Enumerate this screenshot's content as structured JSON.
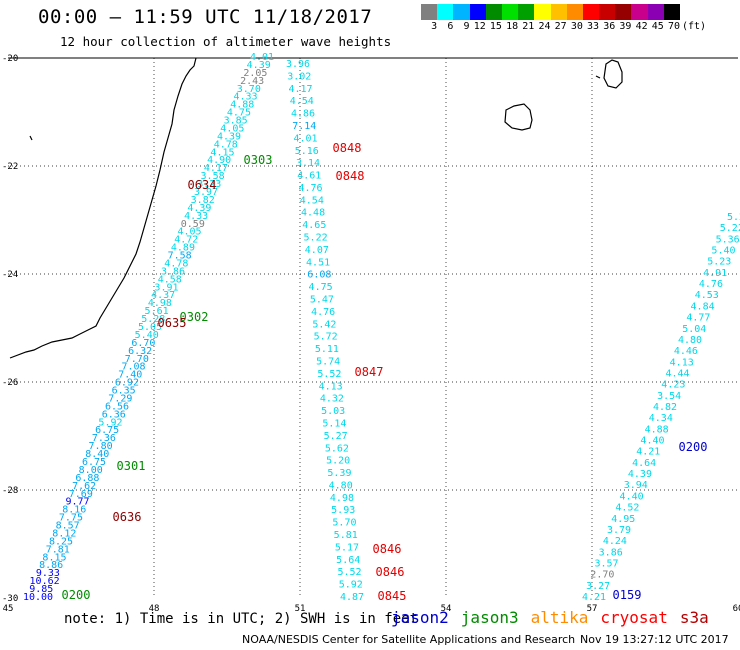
{
  "header": {
    "title": "00:00 – 11:59 UTC 11/18/2017",
    "subtitle": "12 hour collection of altimeter wave heights"
  },
  "legend": {
    "colors": [
      "#808080",
      "#00ffff",
      "#00b4ff",
      "#0000ff",
      "#008b00",
      "#00e000",
      "#00a000",
      "#ffff00",
      "#ffc000",
      "#ff8c00",
      "#ff0000",
      "#c80000",
      "#960000",
      "#c8008c",
      "#8c00b4",
      "#000000"
    ],
    "labels": [
      "3",
      "6",
      "9",
      "12",
      "15",
      "18",
      "21",
      "24",
      "27",
      "30",
      "33",
      "36",
      "39",
      "42",
      "45",
      "70"
    ],
    "unit": "(ft)"
  },
  "axes": {
    "x_ticks": [
      "45",
      "48",
      "51",
      "54",
      "57",
      "60"
    ],
    "y_ticks": [
      "-20",
      "-22",
      "-24",
      "-26",
      "-28",
      "-30"
    ]
  },
  "tracks": {
    "track1": [
      "4.01",
      "4.39",
      "2.05",
      "2.43",
      "3.70",
      "4.33",
      "4.88",
      "4.75",
      "3.85",
      "4.05",
      "4.39",
      "4.78",
      "4.15",
      "4.90",
      "4.17",
      "3.58",
      "3.23",
      "3.97",
      "3.82",
      "4.39",
      "4.33",
      "0.59",
      "4.05",
      "4.72",
      "4.89",
      "7.58",
      "4.78",
      "3.86",
      "4.58",
      "3.91",
      "4.37",
      "4.98",
      "5.61",
      "5.28",
      "5.05",
      "5.40",
      "6.70",
      "6.32",
      "7.70",
      "7.08",
      "7.40",
      "6.92",
      "6.35",
      "7.29",
      "6.56",
      "6.36",
      "5.92",
      "6.75",
      "7.36",
      "7.80",
      "8.40",
      "6.75",
      "8.00",
      "6.88",
      "7.62",
      "7.69",
      "9.77",
      "8.16",
      "7.75",
      "8.57",
      "8.12",
      "8.25",
      "7.81",
      "8.15",
      "8.86",
      "9.33",
      "10.62",
      "9.85",
      "10.00"
    ],
    "track2": [
      "3.96",
      "3.02",
      "4.17",
      "4.54",
      "4.86",
      "7.14",
      "4.01",
      "5.16",
      "3.14",
      "4.61",
      "4.76",
      "4.54",
      "4.48",
      "4.65",
      "5.22",
      "4.07",
      "4.51",
      "6.08",
      "4.75",
      "5.47",
      "4.76",
      "5.42",
      "5.72",
      "5.11",
      "5.74",
      "5.52",
      "4.13",
      "4.32",
      "5.03",
      "5.14",
      "5.27",
      "5.62",
      "5.20",
      "5.39",
      "4.80",
      "4.98",
      "5.93",
      "5.70",
      "5.81",
      "5.17",
      "5.64",
      "5.52",
      "5.92",
      "4.87"
    ],
    "track3": [
      "5.2",
      "5.22",
      "5.36",
      "5.40",
      "5.23",
      "4.91",
      "4.76",
      "4.53",
      "4.84",
      "4.77",
      "5.04",
      "4.80",
      "4.46",
      "4.13",
      "4.44",
      "4.23",
      "3.54",
      "4.82",
      "4.34",
      "4.88",
      "4.40",
      "4.21",
      "4.64",
      "4.39",
      "3.94",
      "4.40",
      "4.52",
      "4.95",
      "3.79",
      "4.24",
      "3.86",
      "3.57",
      "2.70",
      "3.27",
      "4.21"
    ]
  },
  "passes": [
    {
      "time": "0303",
      "sat": "jason3"
    },
    {
      "time": "0634",
      "sat": "cryosat"
    },
    {
      "time": "0848",
      "sat": "cryosat"
    },
    {
      "time": "0848",
      "sat": "cryosat"
    },
    {
      "time": "0302",
      "sat": "jason3"
    },
    {
      "time": "0635",
      "sat": "cryosat"
    },
    {
      "time": "0847",
      "sat": "cryosat"
    },
    {
      "time": "0301",
      "sat": "jason3"
    },
    {
      "time": "0636",
      "sat": "cryosat"
    },
    {
      "time": "0200",
      "sat": "jason2"
    },
    {
      "time": "0846",
      "sat": "cryosat"
    },
    {
      "time": "0846",
      "sat": "cryosat"
    },
    {
      "time": "0845",
      "sat": "cryosat"
    },
    {
      "time": "0200",
      "sat": "jason3"
    },
    {
      "time": "0159",
      "sat": "jason2"
    }
  ],
  "footer": {
    "note": "note: 1) Time is in UTC; 2) SWH is in feet",
    "satellites": [
      {
        "name": "jason2",
        "color": "#0000cc"
      },
      {
        "name": "jason3",
        "color": "#008b00"
      },
      {
        "name": "altika",
        "color": "#ff8c00"
      },
      {
        "name": "cryosat",
        "color": "#ff0000"
      },
      {
        "name": "s3a",
        "color": "#b40000"
      }
    ],
    "credit": "NOAA/NESDIS Center for Satellite Applications and Research",
    "timestamp": "Nov 19 13:27:12 UTC 2017"
  }
}
